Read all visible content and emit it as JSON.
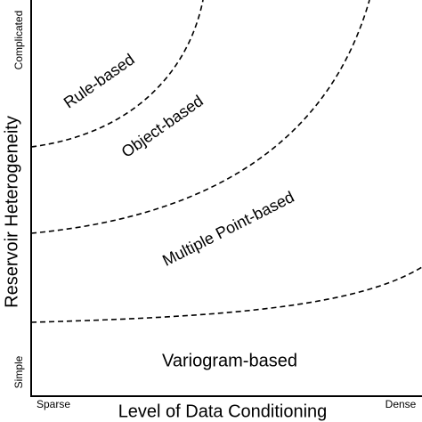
{
  "axes": {
    "x_label": "Level of Data Conditioning",
    "y_label": "Reservoir Heterogeneity",
    "x_low": "Sparse",
    "x_high": "Dense",
    "y_low": "Simple",
    "y_high": "Complicated"
  },
  "regions": [
    {
      "label": "Rule-based"
    },
    {
      "label": "Object-based"
    },
    {
      "label": "Multiple Point-based"
    },
    {
      "label": "Variogram-based"
    }
  ]
}
